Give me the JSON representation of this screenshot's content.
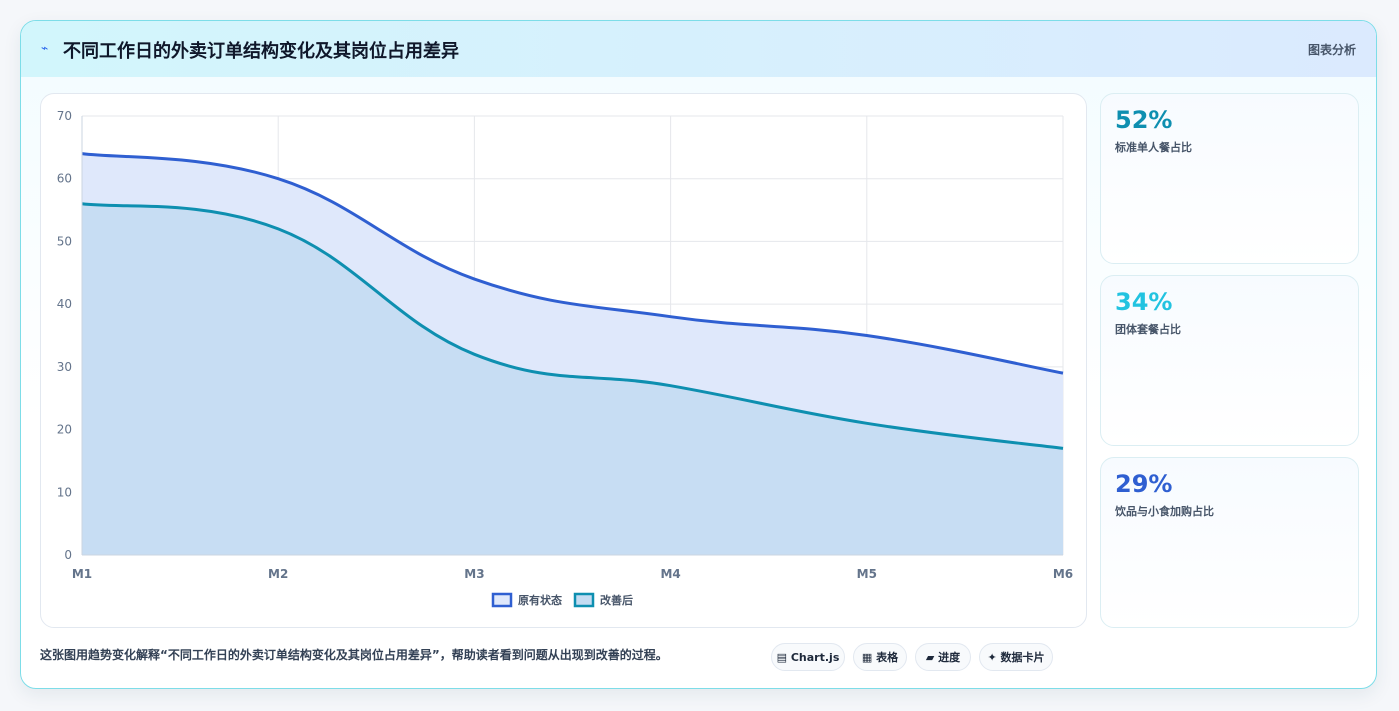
{
  "header": {
    "icon": "lightning-icon",
    "title": "不同工作日的外卖订单结构变化及其岗位占用差异",
    "tag": "图表分析"
  },
  "chart_data": {
    "type": "area",
    "categories": [
      "M1",
      "M2",
      "M3",
      "M4",
      "M5",
      "M6"
    ],
    "series": [
      {
        "name": "原有状态",
        "values": [
          64,
          60,
          44,
          38,
          35,
          29
        ],
        "color": "#2f5fd1",
        "fill": "#dfe8fb"
      },
      {
        "name": "改善后",
        "values": [
          56,
          52,
          32,
          27,
          21,
          17
        ],
        "color": "#0e8fb0",
        "fill": "#c4dcf2"
      }
    ],
    "ylim": [
      0,
      70
    ],
    "yticks": [
      0,
      10,
      20,
      30,
      40,
      50,
      60,
      70
    ],
    "grid": true,
    "legend": "bottom-center"
  },
  "stats": [
    {
      "value": "52%",
      "label": "标准单人餐占比",
      "color": "#0e8fb0"
    },
    {
      "value": "34%",
      "label": "团体套餐占比",
      "color": "#22c3e0"
    },
    {
      "value": "29%",
      "label": "饮品与小食加购占比",
      "color": "#2f5fd1"
    }
  ],
  "caption": "这张图用趋势变化解释“不同工作日的外卖订单结构变化及其岗位占用差异”，帮助读者看到问题从出现到改善的过程。",
  "chips": [
    {
      "icon": "chart-icon",
      "glyph": "▤",
      "label": "Chart.js"
    },
    {
      "icon": "table-icon",
      "glyph": "▦",
      "label": "表格"
    },
    {
      "icon": "progress-icon",
      "glyph": "▰",
      "label": "进度"
    },
    {
      "icon": "sparkle-icon",
      "glyph": "✦",
      "label": "数据卡片"
    }
  ]
}
